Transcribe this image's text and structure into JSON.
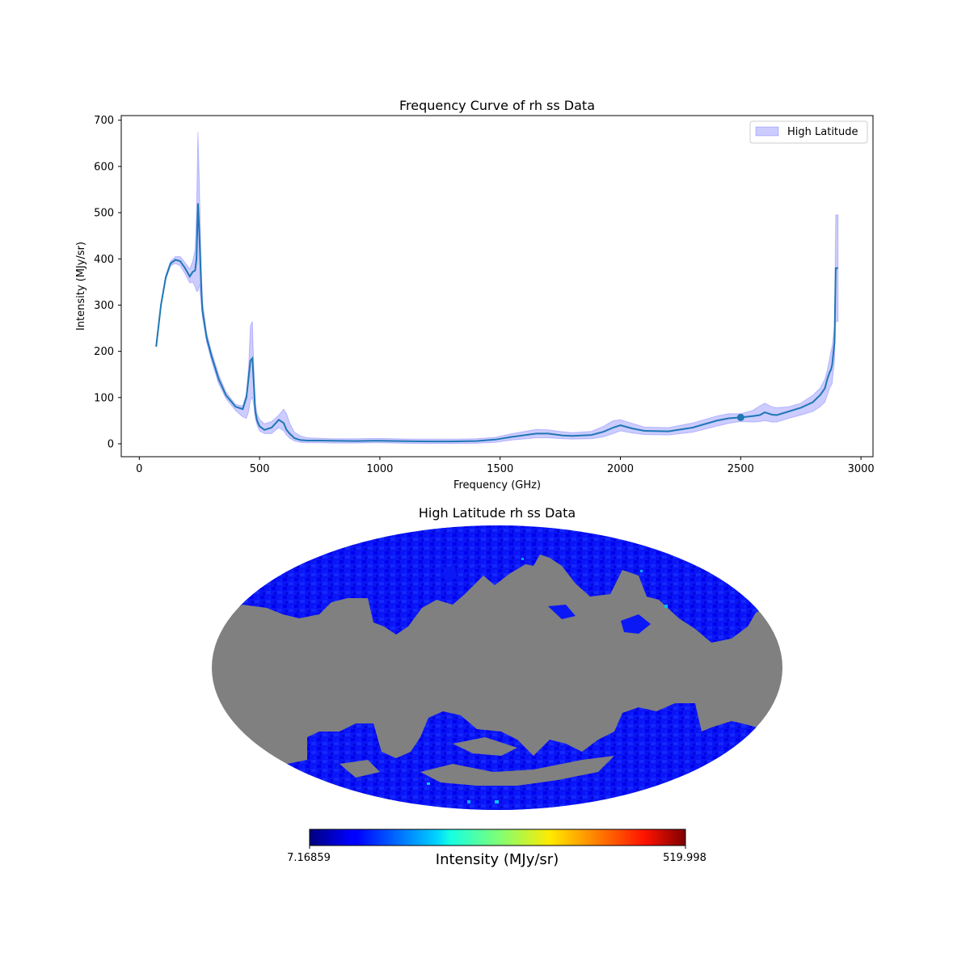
{
  "chart_data": [
    {
      "type": "line",
      "title": "Frequency Curve of rh ss Data",
      "xlabel": "Frequency (GHz)",
      "ylabel": "Intensity (MJy/sr)",
      "xlim": [
        -75,
        3050
      ],
      "ylim": [
        -28,
        710
      ],
      "xticks": [
        0,
        500,
        1000,
        1500,
        2000,
        2500,
        3000
      ],
      "yticks": [
        0,
        100,
        200,
        300,
        400,
        500,
        600,
        700
      ],
      "legend": {
        "position": "top-right",
        "entries": [
          "High Latitude"
        ]
      },
      "line_color": "#1f77b4",
      "band_color": "#0000ff",
      "series": [
        {
          "name": "High Latitude",
          "x": [
            70,
            90,
            110,
            130,
            150,
            170,
            190,
            210,
            222,
            232,
            238,
            244,
            250,
            256,
            262,
            280,
            300,
            330,
            360,
            400,
            430,
            445,
            455,
            462,
            470,
            476,
            482,
            490,
            500,
            520,
            550,
            580,
            600,
            612,
            625,
            645,
            670,
            700,
            750,
            800,
            900,
            970,
            1000,
            1100,
            1200,
            1300,
            1400,
            1480,
            1550,
            1650,
            1700,
            1760,
            1800,
            1880,
            1930,
            1970,
            2000,
            2050,
            2100,
            2200,
            2300,
            2400,
            2450,
            2500,
            2550,
            2580,
            2600,
            2630,
            2650,
            2700,
            2750,
            2800,
            2830,
            2850,
            2860,
            2870,
            2875,
            2880,
            2890,
            2895,
            2905
          ],
          "y": [
            210,
            300,
            360,
            390,
            398,
            395,
            380,
            362,
            372,
            375,
            400,
            520,
            450,
            360,
            290,
            230,
            190,
            140,
            105,
            80,
            75,
            100,
            145,
            180,
            185,
            130,
            70,
            50,
            38,
            30,
            35,
            52,
            45,
            30,
            22,
            12,
            8,
            7,
            7,
            6.5,
            6,
            6.5,
            6.5,
            5.5,
            5,
            5,
            6,
            9,
            15,
            22,
            22,
            18,
            17,
            19,
            26,
            35,
            40,
            33,
            28,
            27,
            35,
            50,
            55,
            57,
            60,
            62,
            68,
            63,
            62,
            70,
            78,
            90,
            105,
            120,
            140,
            155,
            160,
            170,
            220,
            380,
            380
          ],
          "band_upper": [
            210,
            300,
            365,
            395,
            405,
            405,
            392,
            378,
            395,
            420,
            500,
            675,
            560,
            420,
            310,
            240,
            200,
            150,
            112,
            85,
            82,
            108,
            170,
            255,
            265,
            165,
            88,
            65,
            53,
            43,
            48,
            62,
            75,
            65,
            45,
            25,
            17,
            13,
            12,
            11,
            11,
            11.5,
            11.5,
            10.5,
            10,
            10,
            11,
            14,
            22,
            31,
            30,
            26,
            24,
            27,
            38,
            50,
            52,
            44,
            36,
            35,
            45,
            60,
            65,
            65,
            72,
            82,
            88,
            80,
            78,
            80,
            88,
            105,
            120,
            140,
            160,
            185,
            200,
            210,
            255,
            495,
            495
          ],
          "band_lower": [
            210,
            300,
            355,
            385,
            390,
            385,
            368,
            348,
            350,
            340,
            330,
            330,
            345,
            310,
            275,
            220,
            180,
            130,
            98,
            72,
            58,
            55,
            70,
            95,
            100,
            82,
            55,
            40,
            28,
            22,
            22,
            35,
            28,
            19,
            12,
            6,
            3,
            2,
            2,
            1.5,
            1.5,
            2,
            2,
            1,
            0.5,
            0.5,
            1,
            3,
            8,
            13,
            13,
            11,
            10,
            11,
            15,
            22,
            28,
            23,
            20,
            19,
            25,
            38,
            44,
            48,
            47,
            48,
            50,
            47,
            47,
            55,
            62,
            70,
            80,
            90,
            105,
            120,
            125,
            130,
            180,
            265,
            265
          ]
        }
      ],
      "highlight_point": {
        "x": 2500,
        "y": 57
      }
    },
    {
      "type": "heatmap",
      "projection": "mollweide",
      "title": "High Latitude rh ss Data",
      "mask_color": "#808080",
      "colormap": "jet",
      "colorbar": {
        "label": "Intensity (MJy/sr)",
        "min_label": "7.16859",
        "max_label": "519.998",
        "min": 7.16859,
        "max": 519.998
      }
    }
  ]
}
